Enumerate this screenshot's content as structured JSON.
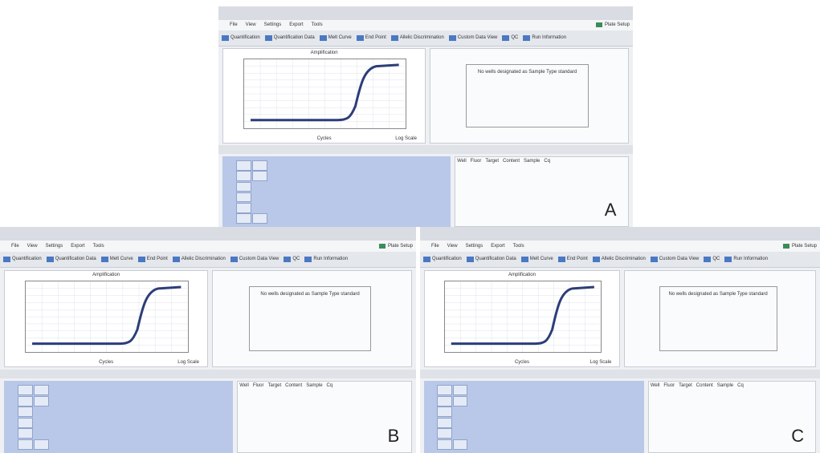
{
  "panels": [
    {
      "label": "A",
      "menu": [
        "File",
        "View",
        "Settings",
        "Export",
        "Tools"
      ],
      "plate_setup": "Plate Setup",
      "toolbar": [
        "Quantification",
        "Quantification Data",
        "Melt Curve",
        "End Point",
        "Allelic Discrimination",
        "Custom Data View",
        "QC",
        "Run Information"
      ],
      "plot_title": "Amplification",
      "x_label": "Cycles",
      "log_scale": "Log Scale",
      "message": "No wells designated as Sample Type standard",
      "table_header": [
        "Well",
        "Fluor",
        "Target",
        "Content",
        "Sample",
        "Cq"
      ]
    },
    {
      "label": "B",
      "menu": [
        "File",
        "View",
        "Settings",
        "Export",
        "Tools"
      ],
      "plate_setup": "Plate Setup",
      "toolbar": [
        "Quantification",
        "Quantification Data",
        "Melt Curve",
        "End Point",
        "Allelic Discrimination",
        "Custom Data View",
        "QC",
        "Run Information"
      ],
      "plot_title": "Amplification",
      "x_label": "Cycles",
      "log_scale": "Log Scale",
      "message": "No wells designated as Sample Type standard",
      "table_header": [
        "Well",
        "Fluor",
        "Target",
        "Content",
        "Sample",
        "Cq"
      ]
    },
    {
      "label": "C",
      "menu": [
        "File",
        "View",
        "Settings",
        "Export",
        "Tools"
      ],
      "plate_setup": "Plate Setup",
      "toolbar": [
        "Quantification",
        "Quantification Data",
        "Melt Curve",
        "End Point",
        "Allelic Discrimination",
        "Custom Data View",
        "QC",
        "Run Information"
      ],
      "plot_title": "Amplification",
      "x_label": "Cycles",
      "log_scale": "Log Scale",
      "message": "No wells designated as Sample Type standard",
      "table_header": [
        "Well",
        "Fluor",
        "Target",
        "Content",
        "Sample",
        "Cq"
      ]
    }
  ]
}
